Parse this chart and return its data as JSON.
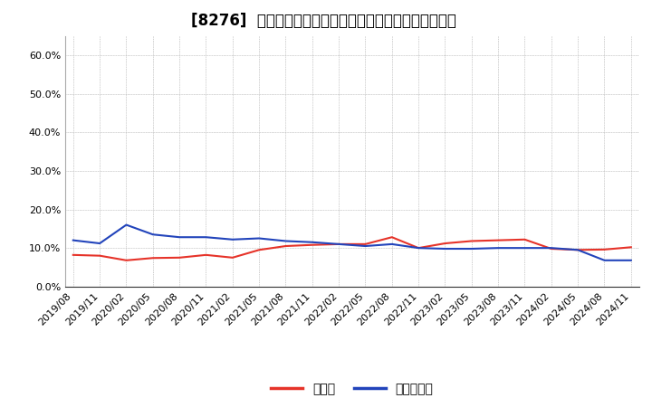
{
  "title": "[8276]  現預金、有利子負債の総資産に対する比率の推移",
  "x_labels": [
    "2019/08",
    "2019/11",
    "2020/02",
    "2020/05",
    "2020/08",
    "2020/11",
    "2021/02",
    "2021/05",
    "2021/08",
    "2021/11",
    "2022/02",
    "2022/05",
    "2022/08",
    "2022/11",
    "2023/02",
    "2023/05",
    "2023/08",
    "2023/11",
    "2024/02",
    "2024/05",
    "2024/08",
    "2024/11"
  ],
  "cash_values": [
    0.082,
    0.08,
    0.068,
    0.074,
    0.075,
    0.082,
    0.075,
    0.095,
    0.105,
    0.108,
    0.11,
    0.11,
    0.128,
    0.1,
    0.112,
    0.118,
    0.12,
    0.122,
    0.098,
    0.095,
    0.096,
    0.102
  ],
  "debt_values": [
    0.12,
    0.112,
    0.16,
    0.135,
    0.128,
    0.128,
    0.122,
    0.125,
    0.118,
    0.115,
    0.11,
    0.105,
    0.11,
    0.1,
    0.098,
    0.098,
    0.1,
    0.1,
    0.1,
    0.095,
    0.068,
    0.068
  ],
  "cash_color": "#e63329",
  "debt_color": "#2244bb",
  "ylim": [
    0.0,
    0.65
  ],
  "yticks": [
    0.0,
    0.1,
    0.2,
    0.3,
    0.4,
    0.5,
    0.6
  ],
  "ytick_labels": [
    "0.0%",
    "10.0%",
    "20.0%",
    "30.0%",
    "40.0%",
    "50.0%",
    "60.0%"
  ],
  "legend_cash": "現預金",
  "legend_debt": "有利子負債",
  "background_color": "#ffffff",
  "grid_color": "#aaaaaa",
  "title_fontsize": 12,
  "tick_fontsize": 8,
  "legend_fontsize": 10
}
